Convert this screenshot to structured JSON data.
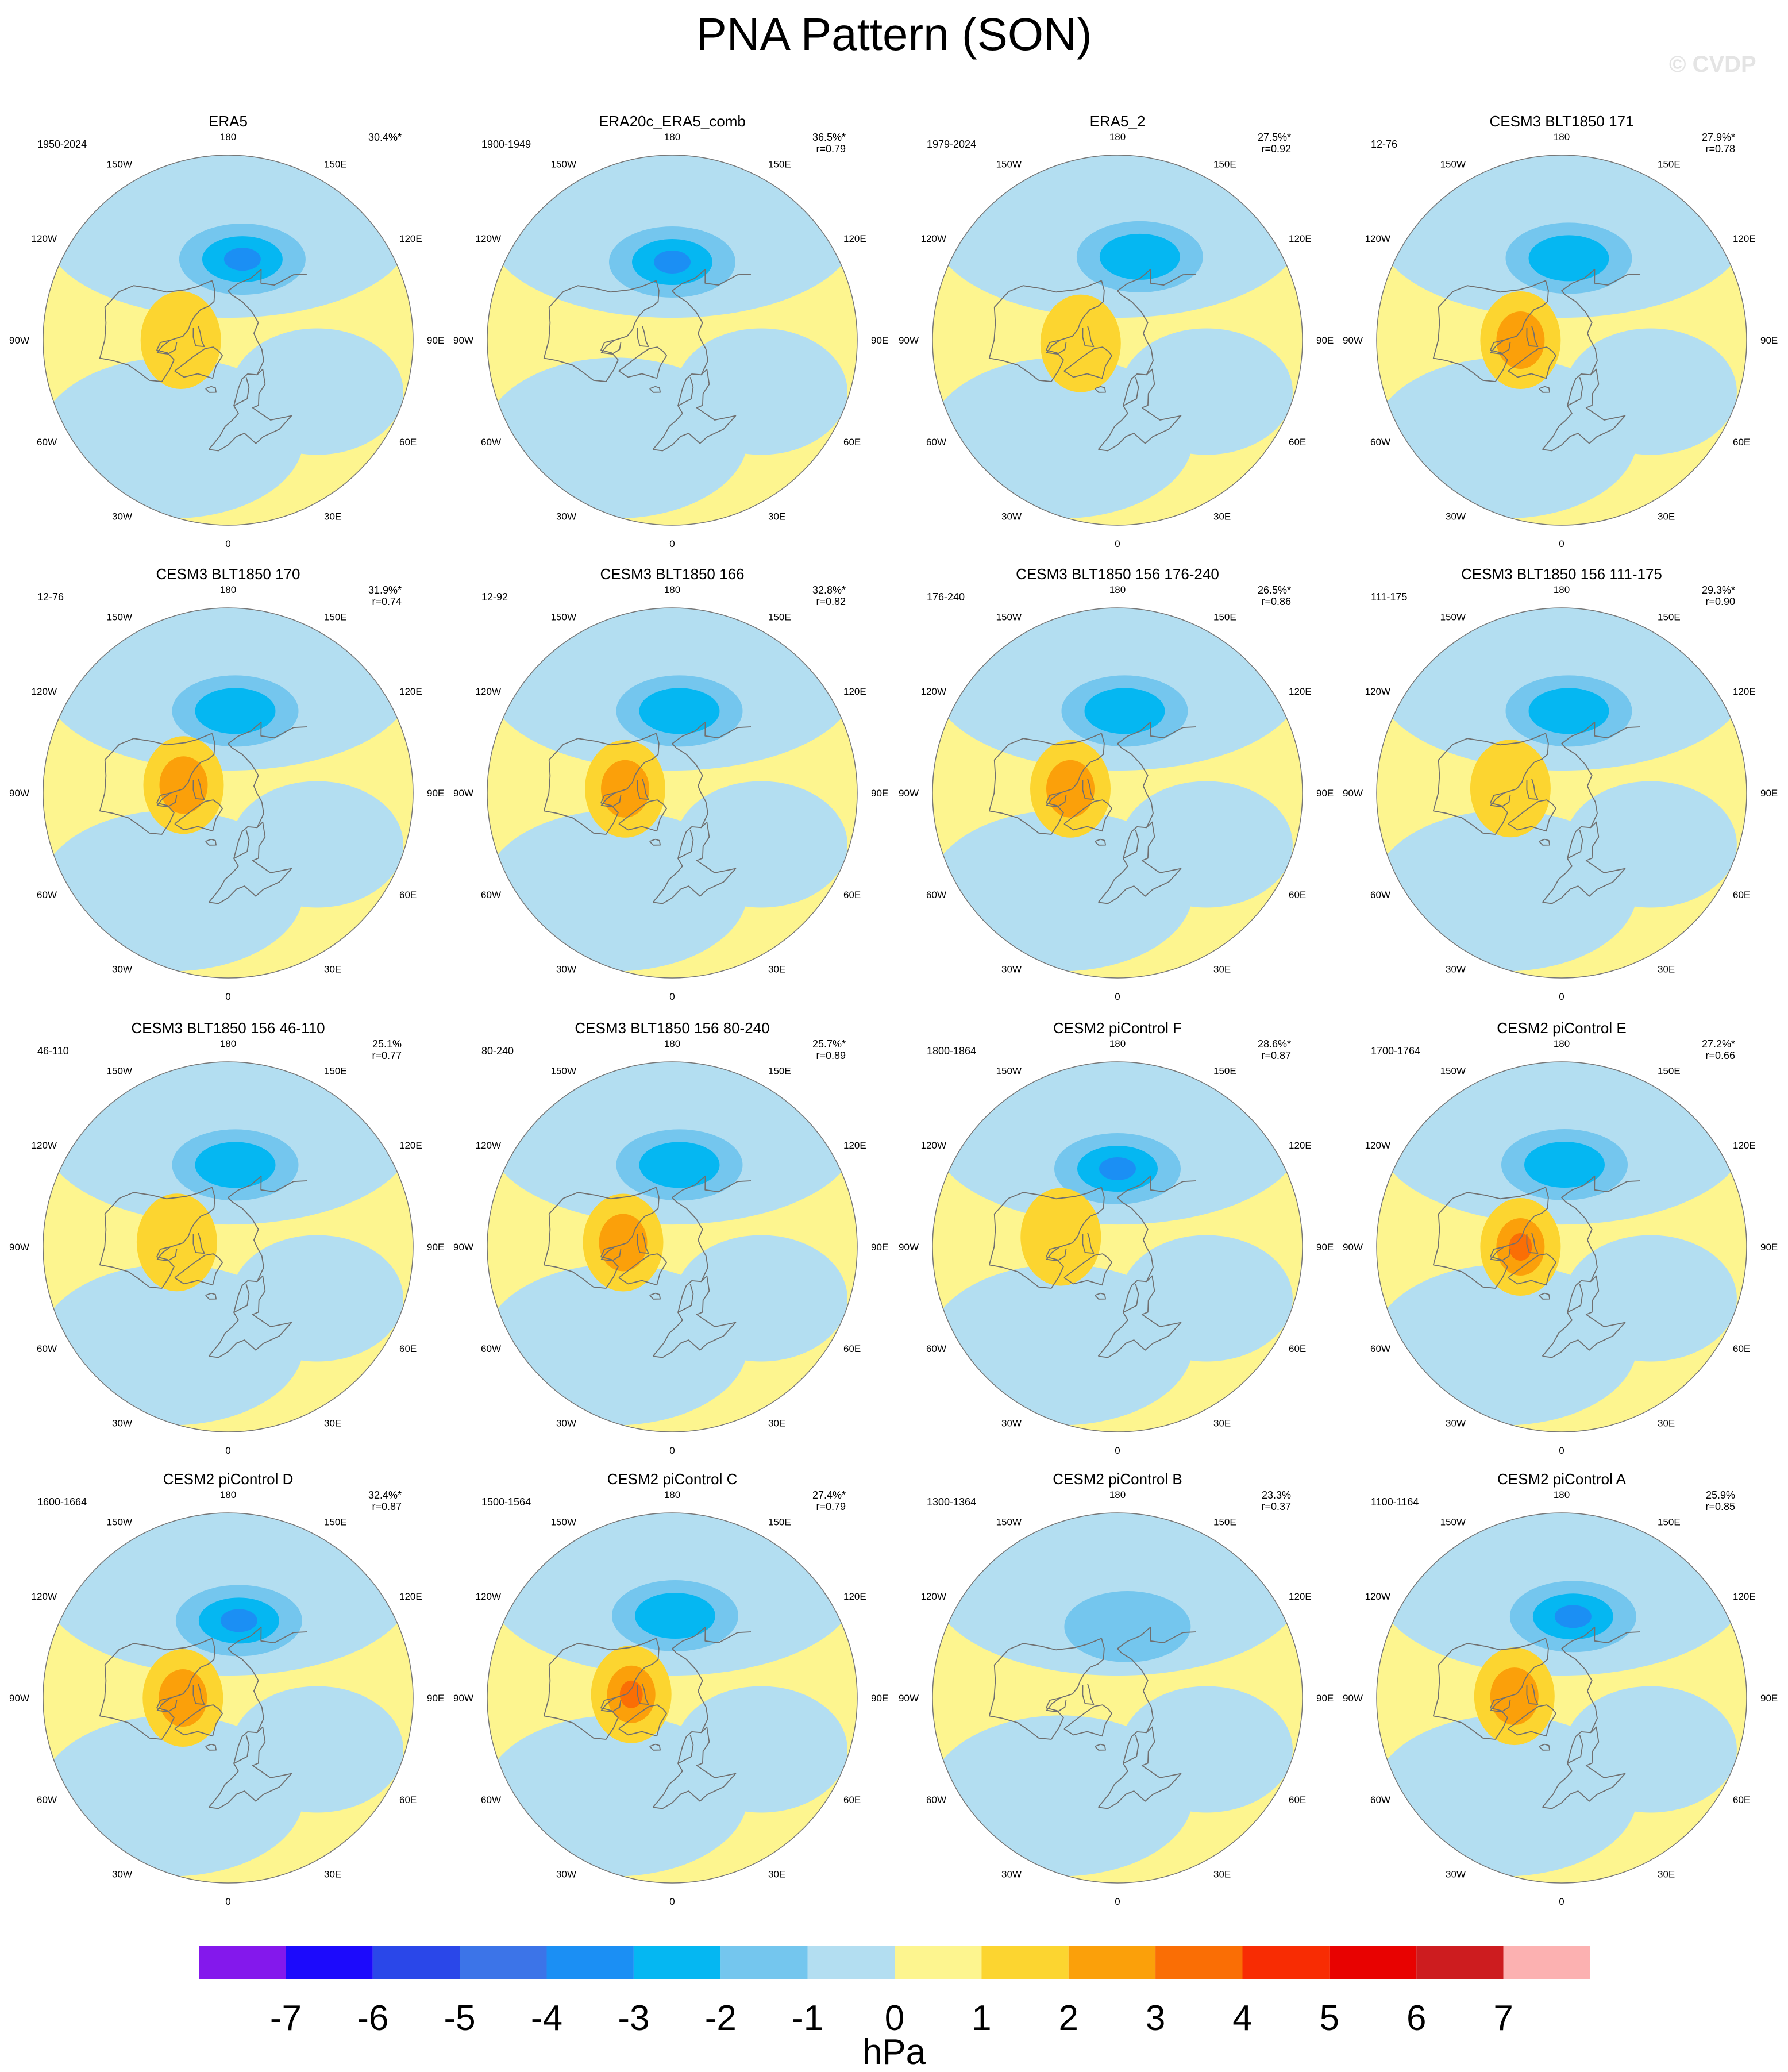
{
  "title": "PNA Pattern (SON)",
  "watermark": "© CVDP",
  "colors": {
    "neg1": "#b3def1",
    "neg2": "#74c6ee",
    "neg3": "#05b7f2",
    "neg4": "#1b8ff4",
    "pos1": "#fdf58f",
    "pos2": "#fcd530",
    "pos3": "#fba00a",
    "pos4": "#fa6e05",
    "coast": "#707070",
    "outline": "#777777"
  },
  "chart_data": {
    "type": "contour-map",
    "projection": "north polar stereographic",
    "units": "hPa",
    "longitude_labels": [
      "180",
      "150E",
      "120E",
      "90E",
      "60E",
      "30E",
      "0",
      "30W",
      "60W",
      "90W",
      "120W",
      "150W"
    ],
    "colorbar": {
      "label": "hPa",
      "tick_labels": [
        "-7",
        "-6",
        "-5",
        "-4",
        "-3",
        "-2",
        "-1",
        "0",
        "1",
        "2",
        "3",
        "4",
        "5",
        "6",
        "7"
      ],
      "colors": [
        "#8418ec",
        "#1c0afc",
        "#2a47e9",
        "#3c74e8",
        "#1b8ff4",
        "#05b7f2",
        "#74c6ee",
        "#b3def1",
        "#fdf58f",
        "#fcd530",
        "#fba00a",
        "#fa6e05",
        "#f82c03",
        "#e80201",
        "#cd1c1f",
        "#fcb1b1"
      ]
    },
    "panels": [
      {
        "title": "ERA5",
        "years": "1950-2024",
        "pct": "30.4%*",
        "r": "",
        "neg_lobe": {
          "lon": 170,
          "lat": 50,
          "min_hpa": -4
        },
        "pos_lobe": {
          "lon": 270,
          "lat": 67,
          "max_hpa": 2
        }
      },
      {
        "title": "ERA20c_ERA5_comb",
        "years": "1900-1949",
        "pct": "36.5%*",
        "r": "r=0.79",
        "neg_lobe": {
          "lon": 180,
          "lat": 52,
          "min_hpa": -4
        },
        "pos_lobe": null
      },
      {
        "title": "ERA5_2",
        "years": "1979-2024",
        "pct": "27.5%*",
        "r": "r=0.92",
        "neg_lobe": {
          "lon": 165,
          "lat": 48,
          "min_hpa": -3
        },
        "pos_lobe": {
          "lon": 275,
          "lat": 72,
          "max_hpa": 2
        }
      },
      {
        "title": "CESM3 BLT1850 171",
        "years": "12-76",
        "pct": "27.9%*",
        "r": "r=0.78",
        "neg_lobe": {
          "lon": 175,
          "lat": 50,
          "min_hpa": -3
        },
        "pos_lobe": {
          "lon": 270,
          "lat": 70,
          "max_hpa": 3
        }
      },
      {
        "title": "CESM3 BLT1850 170",
        "years": "12-76",
        "pct": "31.9%*",
        "r": "r=0.74",
        "neg_lobe": {
          "lon": 175,
          "lat": 50,
          "min_hpa": -3
        },
        "pos_lobe": {
          "lon": 260,
          "lat": 68,
          "max_hpa": 3
        }
      },
      {
        "title": "CESM3 BLT1850 166",
        "years": "12-92",
        "pct": "32.8%*",
        "r": "r=0.82",
        "neg_lobe": {
          "lon": 175,
          "lat": 50,
          "min_hpa": -3
        },
        "pos_lobe": {
          "lon": 265,
          "lat": 67,
          "max_hpa": 3
        }
      },
      {
        "title": "CESM3 BLT1850 156 176-240",
        "years": "176-240",
        "pct": "26.5%*",
        "r": "r=0.86",
        "neg_lobe": {
          "lon": 175,
          "lat": 50,
          "min_hpa": -3
        },
        "pos_lobe": {
          "lon": 265,
          "lat": 67,
          "max_hpa": 3
        }
      },
      {
        "title": "CESM3 BLT1850 156 111-175",
        "years": "111-175",
        "pct": "29.3%*",
        "r": "r=0.90",
        "neg_lobe": {
          "lon": 175,
          "lat": 50,
          "min_hpa": -3
        },
        "pos_lobe": {
          "lon": 265,
          "lat": 65,
          "max_hpa": 2
        }
      },
      {
        "title": "CESM3 BLT1850 156 46-110",
        "years": "46-110",
        "pct": "25.1%",
        "r": "r=0.77",
        "neg_lobe": {
          "lon": 175,
          "lat": 50,
          "min_hpa": -3
        },
        "pos_lobe": {
          "lon": 265,
          "lat": 65,
          "max_hpa": 2
        }
      },
      {
        "title": "CESM3 BLT1850 156 80-240",
        "years": "80-240",
        "pct": "25.7%*",
        "r": "r=0.89",
        "neg_lobe": {
          "lon": 175,
          "lat": 50,
          "min_hpa": -3
        },
        "pos_lobe": {
          "lon": 265,
          "lat": 66,
          "max_hpa": 3
        }
      },
      {
        "title": "CESM2 piControl F",
        "years": "1800-1864",
        "pct": "28.6%*",
        "r": "r=0.87",
        "neg_lobe": {
          "lon": 180,
          "lat": 52,
          "min_hpa": -4
        },
        "pos_lobe": {
          "lon": 260,
          "lat": 62,
          "max_hpa": 2
        }
      },
      {
        "title": "CESM2 piControl E",
        "years": "1700-1764",
        "pct": "27.2%*",
        "r": "r=0.66",
        "neg_lobe": {
          "lon": 178,
          "lat": 50,
          "min_hpa": -3
        },
        "pos_lobe": {
          "lon": 270,
          "lat": 70,
          "max_hpa": 4
        }
      },
      {
        "title": "CESM2 piControl D",
        "years": "1600-1664",
        "pct": "32.4%*",
        "r": "r=0.87",
        "neg_lobe": {
          "lon": 172,
          "lat": 52,
          "min_hpa": -4
        },
        "pos_lobe": {
          "lon": 270,
          "lat": 68,
          "max_hpa": 3
        }
      },
      {
        "title": "CESM2 piControl C",
        "years": "1500-1564",
        "pct": "27.4%*",
        "r": "r=0.79",
        "neg_lobe": {
          "lon": 178,
          "lat": 50,
          "min_hpa": -3
        },
        "pos_lobe": {
          "lon": 265,
          "lat": 70,
          "max_hpa": 4
        }
      },
      {
        "title": "CESM2 piControl B",
        "years": "1300-1364",
        "pct": "23.3%",
        "r": "r=0.37",
        "neg_lobe": {
          "lon": 172,
          "lat": 55,
          "min_hpa": -2
        },
        "pos_lobe": null
      },
      {
        "title": "CESM2 piControl A",
        "years": "1100-1164",
        "pct": "25.9%",
        "r": "r=0.85",
        "neg_lobe": {
          "lon": 172,
          "lat": 50,
          "min_hpa": -4
        },
        "pos_lobe": {
          "lon": 268,
          "lat": 67,
          "max_hpa": 3
        }
      }
    ]
  }
}
